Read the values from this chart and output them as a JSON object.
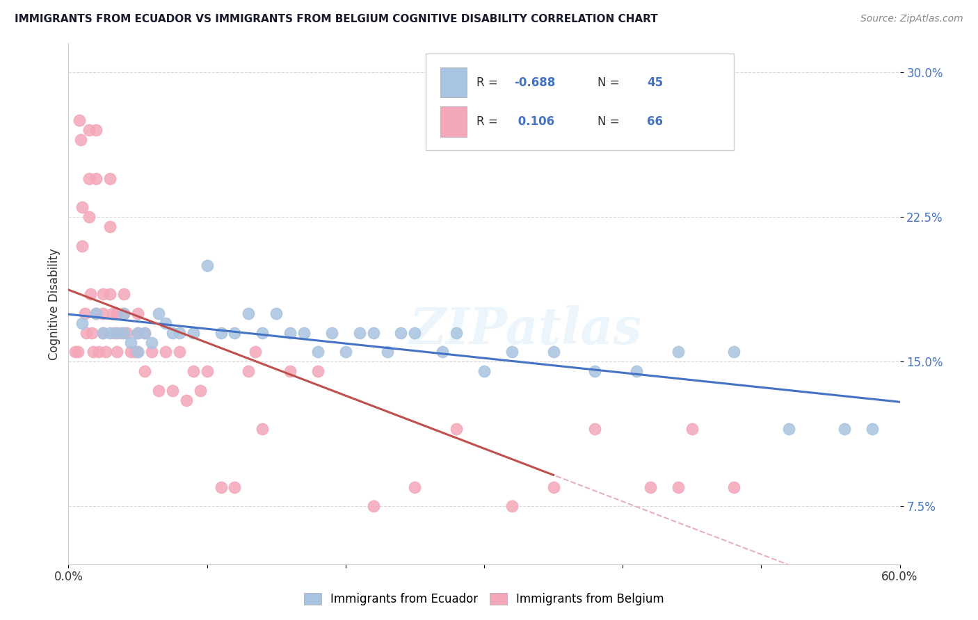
{
  "title": "IMMIGRANTS FROM ECUADOR VS IMMIGRANTS FROM BELGIUM COGNITIVE DISABILITY CORRELATION CHART",
  "source": "Source: ZipAtlas.com",
  "ylabel": "Cognitive Disability",
  "x_min": 0.0,
  "x_max": 0.6,
  "y_min": 0.045,
  "y_max": 0.315,
  "yticks": [
    0.075,
    0.15,
    0.225,
    0.3
  ],
  "ytick_labels": [
    "7.5%",
    "15.0%",
    "22.5%",
    "30.0%"
  ],
  "xticks": [
    0.0,
    0.1,
    0.2,
    0.3,
    0.4,
    0.5,
    0.6
  ],
  "xtick_labels": [
    "0.0%",
    "",
    "",
    "",
    "",
    "",
    "60.0%"
  ],
  "ecuador_color": "#a8c4e0",
  "ecuador_line_color": "#4472c4",
  "belgium_color": "#f4a7b9",
  "belgium_line_color": "#c0504d",
  "diagonal_color": "#e8b0bc",
  "watermark_text": "ZIPatlas",
  "ecuador_x": [
    0.01,
    0.02,
    0.025,
    0.03,
    0.035,
    0.04,
    0.04,
    0.045,
    0.05,
    0.05,
    0.055,
    0.06,
    0.065,
    0.07,
    0.075,
    0.08,
    0.09,
    0.1,
    0.11,
    0.12,
    0.13,
    0.14,
    0.15,
    0.16,
    0.17,
    0.18,
    0.19,
    0.2,
    0.21,
    0.22,
    0.23,
    0.24,
    0.25,
    0.27,
    0.28,
    0.3,
    0.32,
    0.35,
    0.38,
    0.41,
    0.44,
    0.48,
    0.52,
    0.56,
    0.58
  ],
  "ecuador_y": [
    0.17,
    0.175,
    0.165,
    0.165,
    0.165,
    0.175,
    0.165,
    0.16,
    0.165,
    0.155,
    0.165,
    0.16,
    0.175,
    0.17,
    0.165,
    0.165,
    0.165,
    0.2,
    0.165,
    0.165,
    0.175,
    0.165,
    0.175,
    0.165,
    0.165,
    0.155,
    0.165,
    0.155,
    0.165,
    0.165,
    0.155,
    0.165,
    0.165,
    0.155,
    0.165,
    0.145,
    0.155,
    0.155,
    0.145,
    0.145,
    0.155,
    0.155,
    0.115,
    0.115,
    0.115
  ],
  "belgium_x": [
    0.005,
    0.007,
    0.008,
    0.009,
    0.01,
    0.01,
    0.012,
    0.013,
    0.015,
    0.015,
    0.015,
    0.016,
    0.017,
    0.018,
    0.02,
    0.02,
    0.02,
    0.022,
    0.025,
    0.025,
    0.025,
    0.027,
    0.03,
    0.03,
    0.03,
    0.032,
    0.033,
    0.035,
    0.035,
    0.038,
    0.04,
    0.04,
    0.042,
    0.045,
    0.048,
    0.05,
    0.05,
    0.05,
    0.055,
    0.055,
    0.06,
    0.065,
    0.07,
    0.075,
    0.08,
    0.085,
    0.09,
    0.095,
    0.1,
    0.11,
    0.12,
    0.13,
    0.135,
    0.14,
    0.16,
    0.18,
    0.22,
    0.25,
    0.28,
    0.32,
    0.35,
    0.38,
    0.42,
    0.44,
    0.45,
    0.48
  ],
  "belgium_y": [
    0.155,
    0.155,
    0.275,
    0.265,
    0.23,
    0.21,
    0.175,
    0.165,
    0.27,
    0.245,
    0.225,
    0.185,
    0.165,
    0.155,
    0.27,
    0.245,
    0.175,
    0.155,
    0.185,
    0.175,
    0.165,
    0.155,
    0.245,
    0.22,
    0.185,
    0.175,
    0.165,
    0.175,
    0.155,
    0.165,
    0.185,
    0.175,
    0.165,
    0.155,
    0.155,
    0.175,
    0.165,
    0.155,
    0.165,
    0.145,
    0.155,
    0.135,
    0.155,
    0.135,
    0.155,
    0.13,
    0.145,
    0.135,
    0.145,
    0.085,
    0.085,
    0.145,
    0.155,
    0.115,
    0.145,
    0.145,
    0.075,
    0.085,
    0.115,
    0.075,
    0.085,
    0.115,
    0.085,
    0.085,
    0.115,
    0.085
  ]
}
